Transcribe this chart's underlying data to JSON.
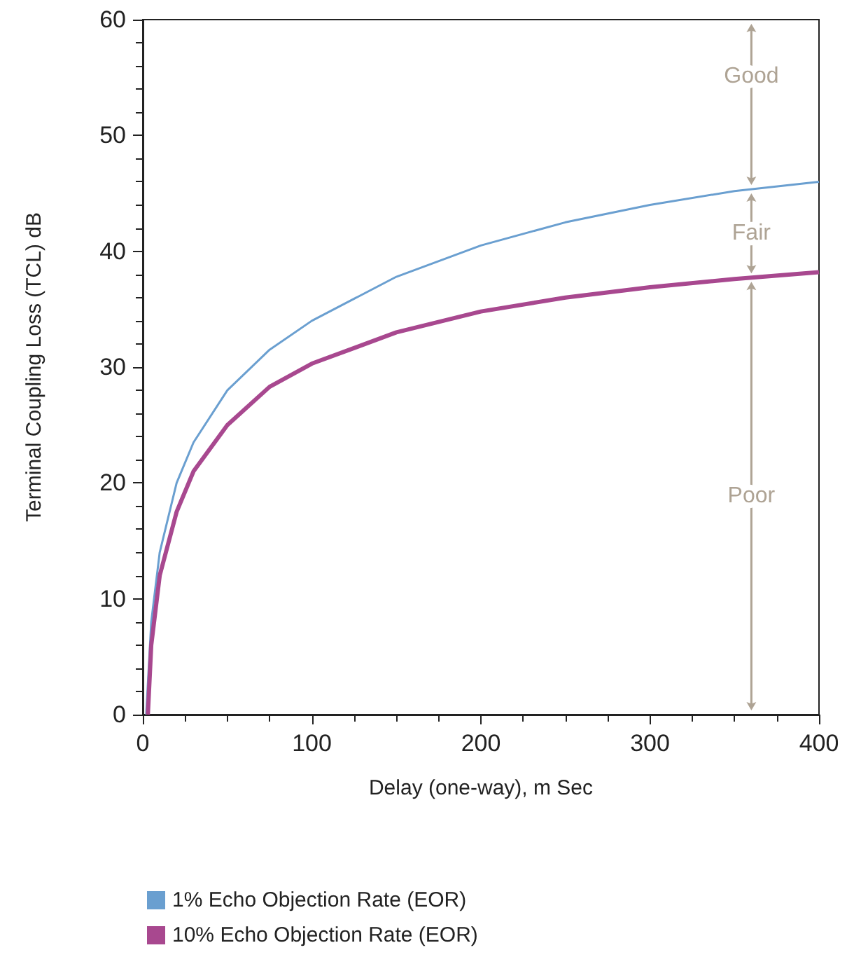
{
  "chart_data": {
    "type": "line",
    "xlabel": "Delay (one-way), m Sec",
    "ylabel": "Terminal Coupling Loss (TCL) dB",
    "xlim": [
      0,
      400
    ],
    "xticks": [
      0,
      100,
      200,
      300,
      400
    ],
    "ylim": [
      0,
      60
    ],
    "yticks": [
      0,
      10,
      20,
      30,
      40,
      50,
      60
    ],
    "grid": false,
    "legend": "bottom",
    "marker": "none",
    "series": [
      {
        "name": "1% Echo Objection Rate (EOR)",
        "color": "#6a9fd0",
        "x": [
          2,
          5,
          10,
          20,
          30,
          50,
          75,
          100,
          150,
          200,
          250,
          300,
          350,
          400
        ],
        "values": [
          0,
          8,
          14,
          20,
          23.5,
          28,
          31.5,
          34,
          37.8,
          40.5,
          42.5,
          44,
          45.2,
          46
        ]
      },
      {
        "name": "10% Echo Objection Rate (EOR)",
        "color": "#a8488f",
        "x": [
          3,
          5,
          10,
          20,
          30,
          50,
          75,
          100,
          150,
          200,
          250,
          300,
          350,
          400
        ],
        "values": [
          0,
          6,
          12,
          17.5,
          21,
          25,
          28.3,
          30.3,
          33,
          34.8,
          36,
          36.9,
          37.6,
          38.2
        ]
      }
    ],
    "annotations": [
      "Good",
      "Fair",
      "Poor"
    ]
  }
}
